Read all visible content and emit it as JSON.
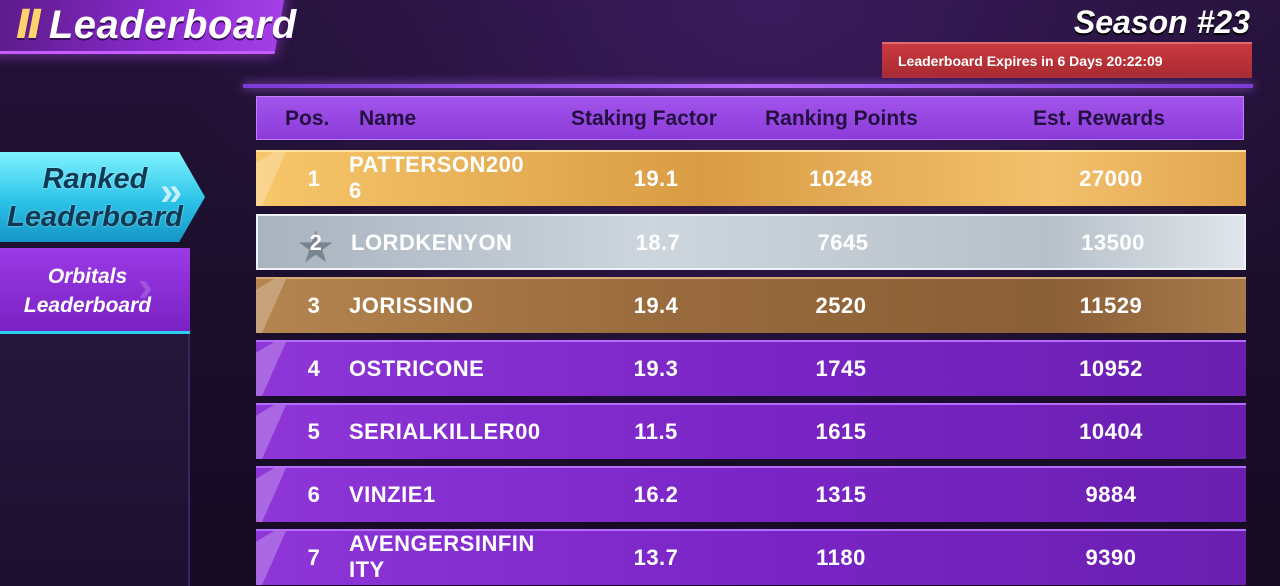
{
  "header": {
    "title": "Leaderboard",
    "title_icon": "Ⅱ",
    "season": "Season #23",
    "expires": "Leaderboard Expires in 6 Days 20:22:09"
  },
  "nav": {
    "ranked_line1": "Ranked",
    "ranked_line2": "Leaderboard",
    "orbitals_line1": "Orbitals",
    "orbitals_line2": "Leaderboard"
  },
  "table": {
    "headers": {
      "pos": "Pos.",
      "name": "Name",
      "staking_factor": "Staking Factor",
      "ranking_points": "Ranking Points",
      "est_rewards": "Est. Rewards"
    },
    "rows": [
      {
        "pos": "1",
        "name_line1": "PATTERSON200",
        "name_line2": "6",
        "staking_factor": "19.1",
        "ranking_points": "10248",
        "est_rewards": "27000"
      },
      {
        "pos": "2",
        "name_line1": "LORDKENYON",
        "name_line2": "",
        "staking_factor": "18.7",
        "ranking_points": "7645",
        "est_rewards": "13500"
      },
      {
        "pos": "3",
        "name_line1": "JORISSINO",
        "name_line2": "",
        "staking_factor": "19.4",
        "ranking_points": "2520",
        "est_rewards": "11529"
      },
      {
        "pos": "4",
        "name_line1": "OSTRICONE",
        "name_line2": "",
        "staking_factor": "19.3",
        "ranking_points": "1745",
        "est_rewards": "10952"
      },
      {
        "pos": "5",
        "name_line1": "SERIALKILLER00",
        "name_line2": "",
        "staking_factor": "11.5",
        "ranking_points": "1615",
        "est_rewards": "10404"
      },
      {
        "pos": "6",
        "name_line1": "VINZIE1",
        "name_line2": "",
        "staking_factor": "16.2",
        "ranking_points": "1315",
        "est_rewards": "9884"
      },
      {
        "pos": "7",
        "name_line1": "AVENGERSINFIN",
        "name_line2": "ITY",
        "staking_factor": "13.7",
        "ranking_points": "1180",
        "est_rewards": "9390"
      }
    ]
  },
  "colors": {
    "gold": "#e5ab55",
    "silver": "#c3ccd5",
    "bronze": "#9a6b3d",
    "purple": "#7a25c6",
    "expires_red": "#b8323a",
    "ranked_cyan": "#2bc2e8"
  }
}
